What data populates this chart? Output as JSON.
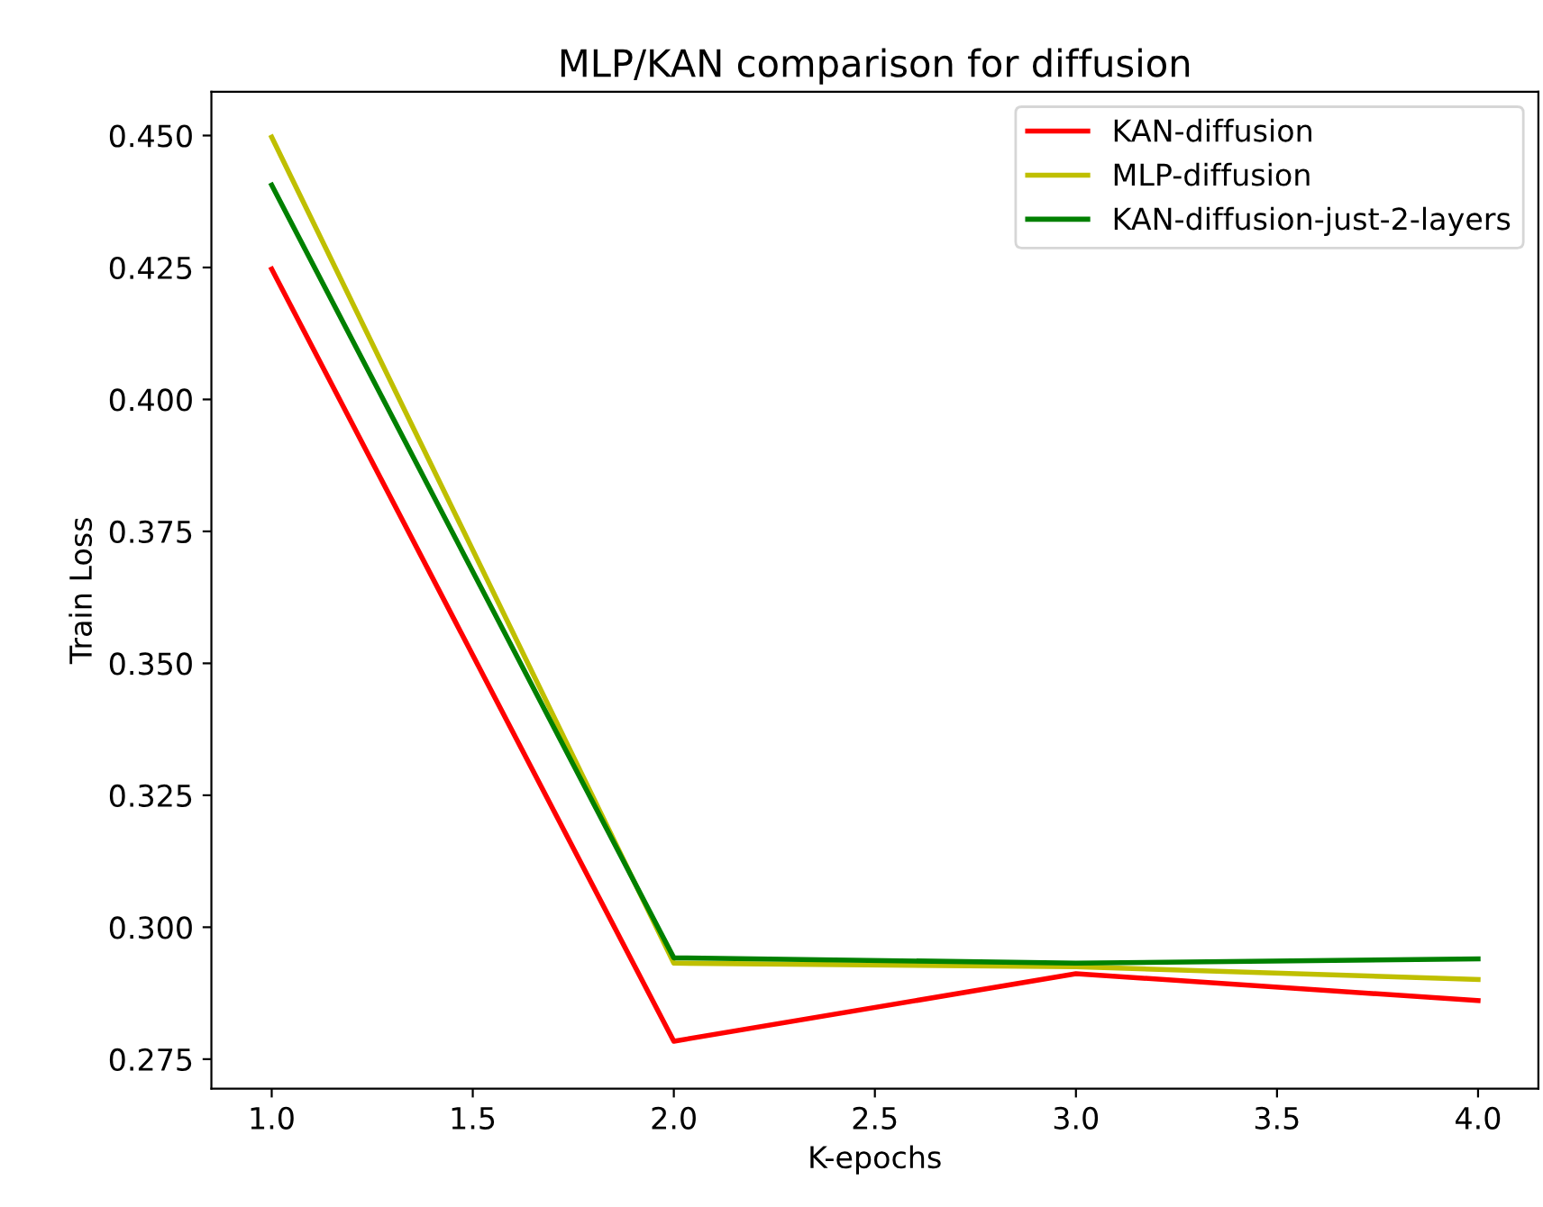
{
  "chart_data": {
    "type": "line",
    "title": "MLP/KAN comparison for diffusion",
    "xlabel": "K-epochs",
    "ylabel": "Train Loss",
    "x": [
      1,
      2,
      3,
      4
    ],
    "series": [
      {
        "name": "KAN-diffusion",
        "color": "#ff0000",
        "values": [
          0.4247,
          0.2784,
          0.2912,
          0.2861
        ]
      },
      {
        "name": "MLP-diffusion",
        "color": "#bfbf00",
        "values": [
          0.4497,
          0.2932,
          0.2925,
          0.2901
        ]
      },
      {
        "name": "KAN-diffusion-just-2-layers",
        "color": "#008000",
        "values": [
          0.4406,
          0.2942,
          0.2932,
          0.294
        ]
      }
    ],
    "xlim": [
      0.85,
      4.15
    ],
    "xticks": [
      {
        "value": 1,
        "label": "1.0"
      },
      {
        "value": 1.5,
        "label": "1.5"
      },
      {
        "value": 2,
        "label": "2.0"
      },
      {
        "value": 2.5,
        "label": "2.5"
      },
      {
        "value": 3,
        "label": "3.0"
      },
      {
        "value": 3.5,
        "label": "3.5"
      },
      {
        "value": 4,
        "label": "4.0"
      }
    ],
    "ylim": [
      0.2694,
      0.4583
    ],
    "yticks": [
      {
        "value": 0.275,
        "label": "0.275"
      },
      {
        "value": 0.3,
        "label": "0.300"
      },
      {
        "value": 0.325,
        "label": "0.325"
      },
      {
        "value": 0.35,
        "label": "0.350"
      },
      {
        "value": 0.375,
        "label": "0.375"
      },
      {
        "value": 0.4,
        "label": "0.400"
      },
      {
        "value": 0.425,
        "label": "0.425"
      },
      {
        "value": 0.45,
        "label": "0.450"
      }
    ],
    "legend": "top right",
    "grid": false,
    "line_style": "solid"
  }
}
